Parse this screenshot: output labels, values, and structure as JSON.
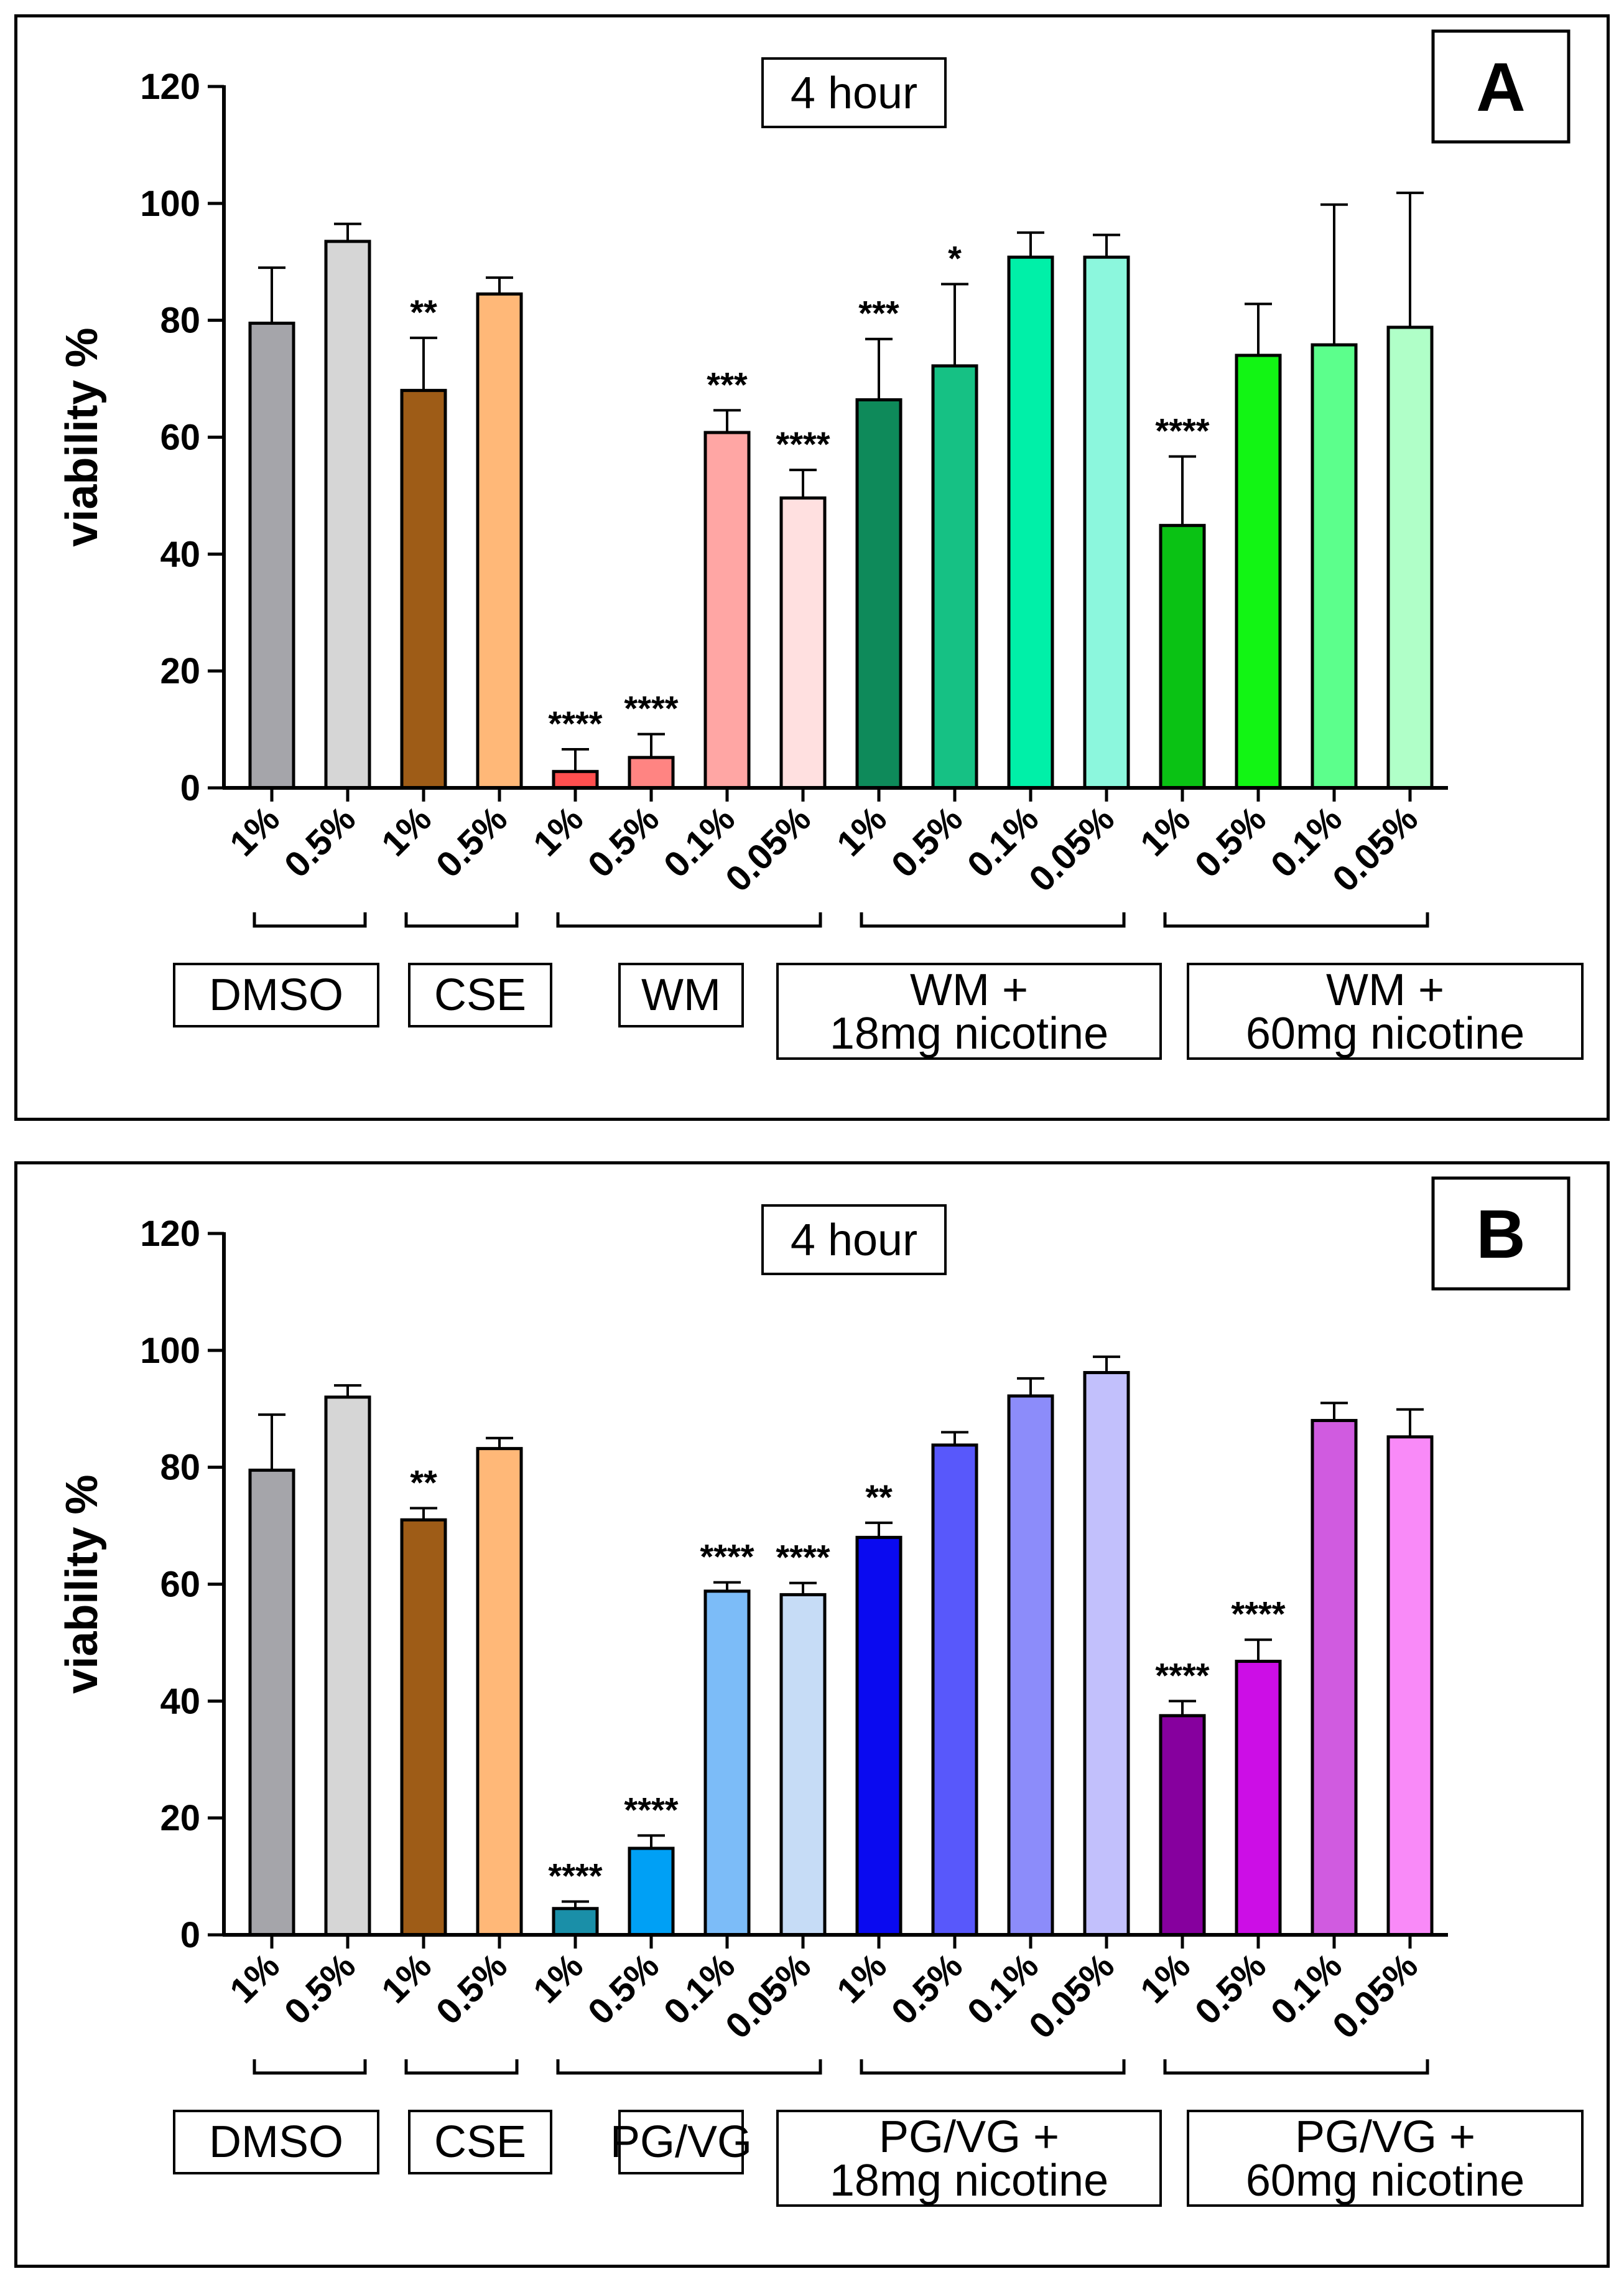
{
  "chart_data": [
    {
      "type": "bar",
      "panel_letter": "A",
      "title": "4 hour",
      "ylabel": "viability %",
      "xlabel": "",
      "ylim": [
        0,
        120
      ],
      "yticks": [
        0,
        20,
        40,
        60,
        80,
        100,
        120
      ],
      "categories": [
        "1%",
        "0.5%",
        "1%",
        "0.5%",
        "1%",
        "0.5%",
        "0.1%",
        "0.05%",
        "1%",
        "0.5%",
        "0.1%",
        "0.05%",
        "1%",
        "0.5%",
        "0.1%",
        "0.05%"
      ],
      "values": [
        79.5,
        93.5,
        68,
        84.5,
        2.8,
        5.2,
        60.8,
        49.6,
        66.4,
        72.2,
        90.8,
        90.8,
        44.9,
        74,
        75.8,
        78.8
      ],
      "errors": [
        9.5,
        3,
        9,
        2.8,
        3.8,
        4,
        3.8,
        4.8,
        10.4,
        14,
        4.2,
        3.8,
        11.8,
        8.8,
        24,
        23
      ],
      "significance": [
        "",
        "",
        "**",
        "",
        "****",
        "****",
        "***",
        "****",
        "***",
        "*",
        "",
        "",
        "****",
        "",
        "",
        ""
      ],
      "colors": [
        "#a5a5aa",
        "#d6d6d6",
        "#9e5c17",
        "#ffb878",
        "#ff4f4f",
        "#ff8482",
        "#ffa6a4",
        "#ffe0e0",
        "#0e8a5a",
        "#16c184",
        "#00f0a8",
        "#8cf7dd",
        "#0ac214",
        "#12f514",
        "#5cff8c",
        "#b0ffc8"
      ],
      "groups": [
        {
          "label_lines": [
            "DMSO"
          ],
          "start": 0,
          "end": 1
        },
        {
          "label_lines": [
            "CSE"
          ],
          "start": 2,
          "end": 3
        },
        {
          "label_lines": [
            "WM"
          ],
          "start": 4,
          "end": 7
        },
        {
          "label_lines": [
            "WM +",
            "18mg nicotine"
          ],
          "start": 8,
          "end": 11
        },
        {
          "label_lines": [
            "WM +",
            "60mg nicotine"
          ],
          "start": 12,
          "end": 15
        }
      ]
    },
    {
      "type": "bar",
      "panel_letter": "B",
      "title": "4 hour",
      "ylabel": "viability %",
      "xlabel": "",
      "ylim": [
        0,
        120
      ],
      "yticks": [
        0,
        20,
        40,
        60,
        80,
        100,
        120
      ],
      "categories": [
        "1%",
        "0.5%",
        "1%",
        "0.5%",
        "1%",
        "0.5%",
        "0.1%",
        "0.05%",
        "1%",
        "0.5%",
        "0.1%",
        "0.05%",
        "1%",
        "0.5%",
        "0.1%",
        "0.05%"
      ],
      "values": [
        79.5,
        92,
        71,
        83.2,
        4.5,
        14.8,
        58.8,
        58.2,
        68,
        83.8,
        92.2,
        96.2,
        37.5,
        46.8,
        88,
        85.2
      ],
      "errors": [
        9.5,
        2,
        2,
        1.8,
        1.2,
        2.2,
        1.5,
        2,
        2.5,
        2.2,
        3,
        2.7,
        2.5,
        3.7,
        3,
        4.7
      ],
      "significance": [
        "",
        "",
        "**",
        "",
        "****",
        "****",
        "****",
        "****",
        "**",
        "",
        "",
        "",
        "****",
        "****",
        "",
        ""
      ],
      "colors": [
        "#a5a5aa",
        "#d6d6d6",
        "#9e5c17",
        "#ffb878",
        "#1a8fa8",
        "#00a0f5",
        "#7cbcf8",
        "#c6dcf6",
        "#0a0af0",
        "#5858fb",
        "#8c8cfa",
        "#c2c0fc",
        "#86009e",
        "#cc0ee6",
        "#d05be0",
        "#f98af8"
      ],
      "groups": [
        {
          "label_lines": [
            "DMSO"
          ],
          "start": 0,
          "end": 1
        },
        {
          "label_lines": [
            "CSE"
          ],
          "start": 2,
          "end": 3
        },
        {
          "label_lines": [
            "PG/VG"
          ],
          "start": 4,
          "end": 7
        },
        {
          "label_lines": [
            "PG/VG +",
            "18mg nicotine"
          ],
          "start": 8,
          "end": 11
        },
        {
          "label_lines": [
            "PG/VG +",
            "60mg nicotine"
          ],
          "start": 12,
          "end": 15
        }
      ]
    }
  ]
}
